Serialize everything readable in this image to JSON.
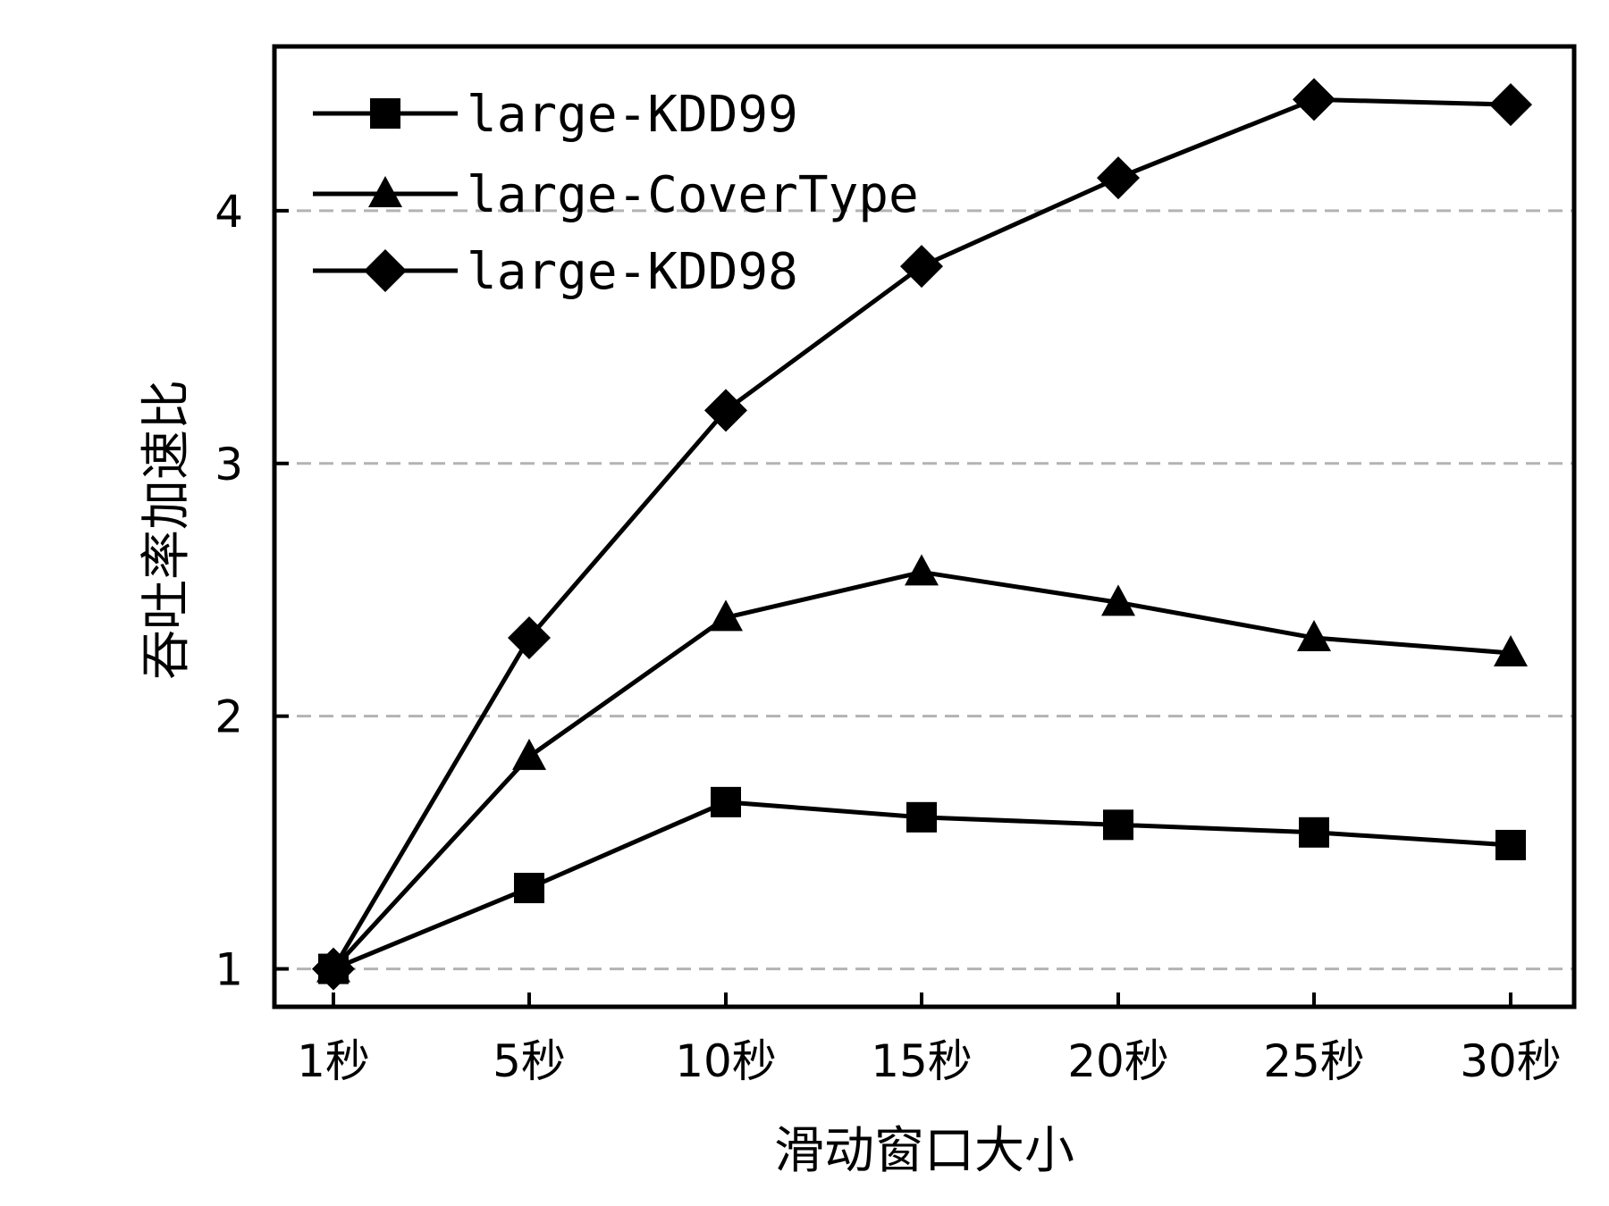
{
  "chart_data": {
    "type": "line",
    "title": "",
    "xlabel": "滑动窗口大小",
    "ylabel": "吞吐率加速比",
    "categories": [
      "1秒",
      "5秒",
      "10秒",
      "15秒",
      "20秒",
      "25秒",
      "30秒"
    ],
    "yticks": [
      "1",
      "2",
      "3",
      "4"
    ],
    "ylim": [
      0.85,
      4.65
    ],
    "grid": "horizontal dashed",
    "legend_position": "top-left",
    "series": [
      {
        "name": "large-KDD99",
        "marker": "square",
        "values": [
          1.0,
          1.32,
          1.66,
          1.6,
          1.57,
          1.54,
          1.49
        ]
      },
      {
        "name": "large-CoverType",
        "marker": "triangle",
        "values": [
          1.0,
          1.84,
          2.39,
          2.57,
          2.45,
          2.31,
          2.25
        ]
      },
      {
        "name": "large-KDD98",
        "marker": "diamond",
        "values": [
          1.0,
          2.31,
          3.21,
          3.78,
          4.13,
          4.44,
          4.42
        ]
      }
    ],
    "colors": {
      "line": "#000000",
      "grid": "#b3b3b3"
    }
  }
}
